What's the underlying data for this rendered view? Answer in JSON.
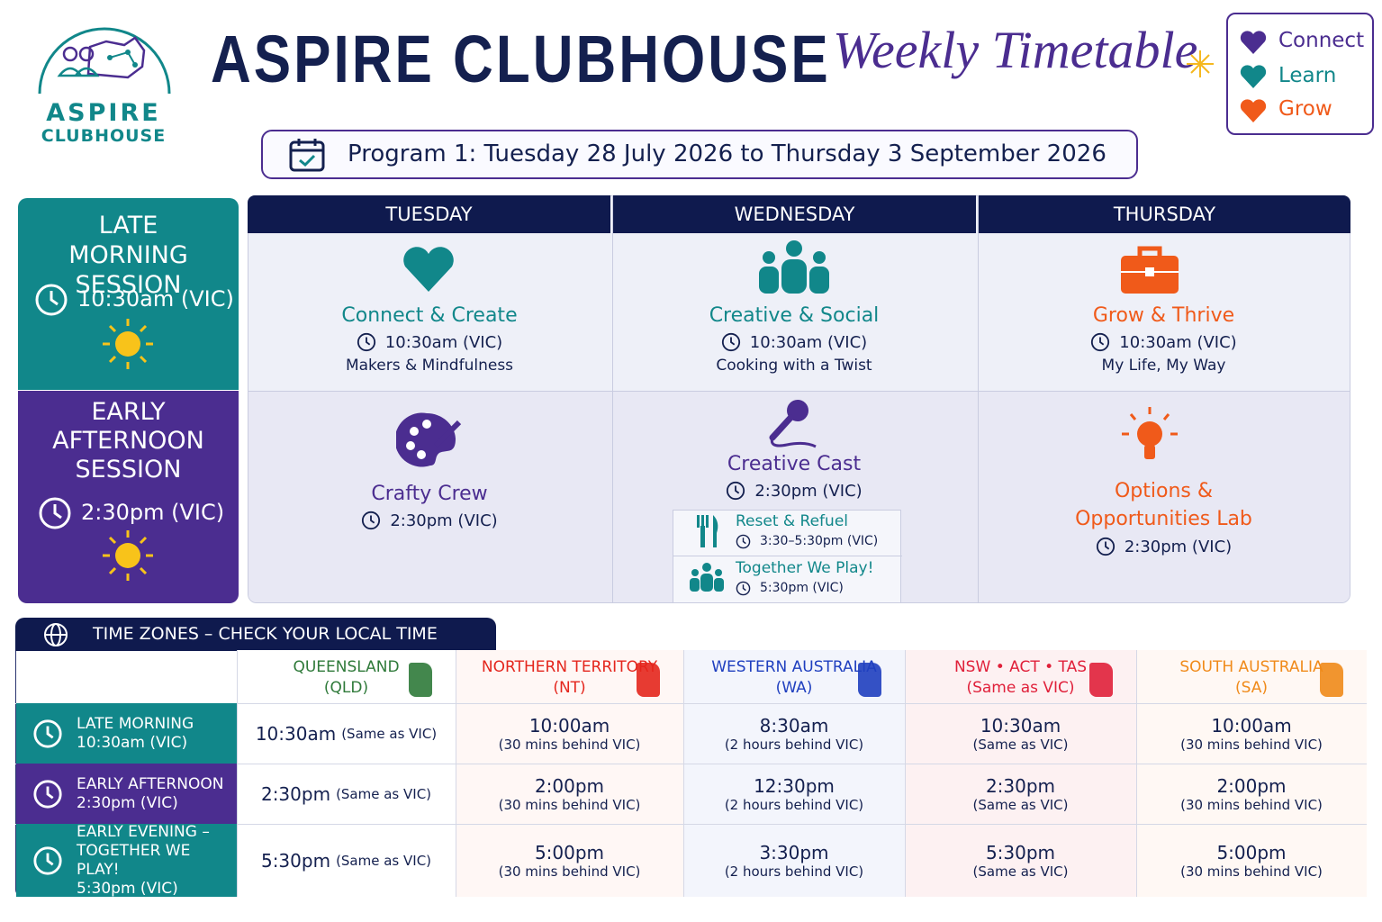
{
  "logo": {
    "line1": "ASPIRE",
    "line2": "CLUBHOUSE"
  },
  "header": {
    "title": "ASPIRE CLUBHOUSE",
    "subtitle": "Weekly Timetable"
  },
  "legend": [
    "Connect",
    "Learn",
    "Grow"
  ],
  "program": "Program 1: Tuesday 28 July 2026 to Thursday 3 September 2026",
  "days": [
    "TUESDAY",
    "WEDNESDAY",
    "THURSDAY"
  ],
  "sessions": [
    {
      "name": "LATE MORNING SESSION",
      "time": "10:30am (VIC)",
      "activities": [
        {
          "title": "Connect & Create",
          "time": "10:30am (VIC)",
          "note": "Makers & Mindfulness"
        },
        {
          "title": "Creative & Social",
          "time": "10:30am (VIC)",
          "note": "Cooking with a Twist"
        },
        {
          "title": "Grow & Thrive",
          "time": "10:30am (VIC)",
          "note": "My Life, My Way"
        }
      ]
    },
    {
      "name": "EARLY AFTERNOON SESSION",
      "time": "2:30pm (VIC)",
      "activities": [
        {
          "title": "Crafty Crew",
          "time": "2:30pm (VIC)"
        },
        {
          "title": "Creative Cast",
          "time": "2:30pm (VIC)",
          "extras": [
            {
              "title": "Reset & Refuel",
              "time": "3:30–5:30pm (VIC)"
            },
            {
              "title": "Together We Play!",
              "time": "5:30pm (VIC)"
            }
          ]
        },
        {
          "title": "Options & Opportunities Lab",
          "time": "2:30pm (VIC)"
        }
      ]
    }
  ],
  "timezones": {
    "heading": "TIME ZONES – CHECK YOUR LOCAL TIME",
    "columns": [
      {
        "name": "QUEENSLAND",
        "sub": "(QLD)"
      },
      {
        "name": "NORTHERN TERRITORY",
        "sub": "(NT)"
      },
      {
        "name": "WESTERN AUSTRALIA",
        "sub": "(WA)"
      },
      {
        "name": "NSW • ACT • TAS",
        "sub": "(Same as VIC)"
      },
      {
        "name": "SOUTH AUSTRALIA",
        "sub": "(SA)"
      }
    ],
    "rows": [
      {
        "label": "LATE MORNING",
        "time": "10:30am (VIC)",
        "cells": [
          {
            "time": "10:30am",
            "note": "(Same as VIC)"
          },
          {
            "time": "10:00am",
            "note": "(30 mins behind VIC)"
          },
          {
            "time": "8:30am",
            "note": "(2 hours behind VIC)"
          },
          {
            "time": "10:30am",
            "note": "(Same as VIC)"
          },
          {
            "time": "10:00am",
            "note": "(30 mins behind VIC)"
          }
        ]
      },
      {
        "label": "EARLY AFTERNOON",
        "time": "2:30pm (VIC)",
        "cells": [
          {
            "time": "2:30pm",
            "note": "(Same as VIC)"
          },
          {
            "time": "2:00pm",
            "note": "(30 mins behind VIC)"
          },
          {
            "time": "12:30pm",
            "note": "(2 hours behind VIC)"
          },
          {
            "time": "2:30pm",
            "note": "(Same as VIC)"
          },
          {
            "time": "2:00pm",
            "note": "(30 mins behind VIC)"
          }
        ]
      },
      {
        "label": "EARLY EVENING – TOGETHER WE PLAY!",
        "time": "5:30pm (VIC)",
        "cells": [
          {
            "time": "5:30pm",
            "note": "(Same as VIC)"
          },
          {
            "time": "5:00pm",
            "note": "(30 mins behind VIC)"
          },
          {
            "time": "3:30pm",
            "note": "(2 hours behind VIC)"
          },
          {
            "time": "5:30pm",
            "note": "(Same as VIC)"
          },
          {
            "time": "5:00pm",
            "note": "(30 mins behind VIC)"
          }
        ]
      }
    ]
  }
}
